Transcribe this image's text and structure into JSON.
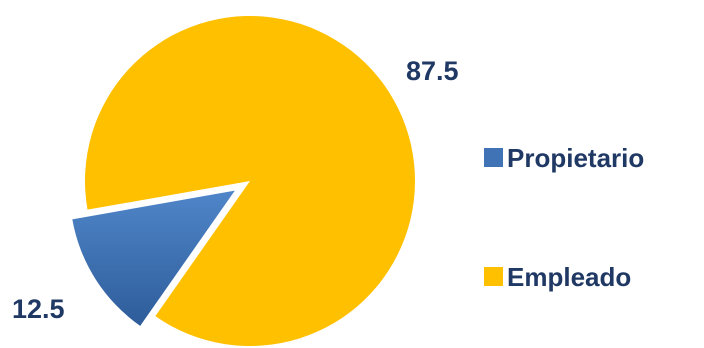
{
  "chart_data": {
    "type": "pie",
    "title": "",
    "categories": [
      "Propietario",
      "Empleado"
    ],
    "values": [
      12.5,
      87.5
    ],
    "data_labels": [
      "12.5",
      "87.5"
    ],
    "colors": [
      "#3F73B6",
      "#FFC000"
    ],
    "label_color": "#1F3864",
    "exploded": [
      "Propietario"
    ],
    "legend": {
      "placement": "right",
      "entries": [
        "Propietario",
        "Empleado"
      ]
    }
  }
}
